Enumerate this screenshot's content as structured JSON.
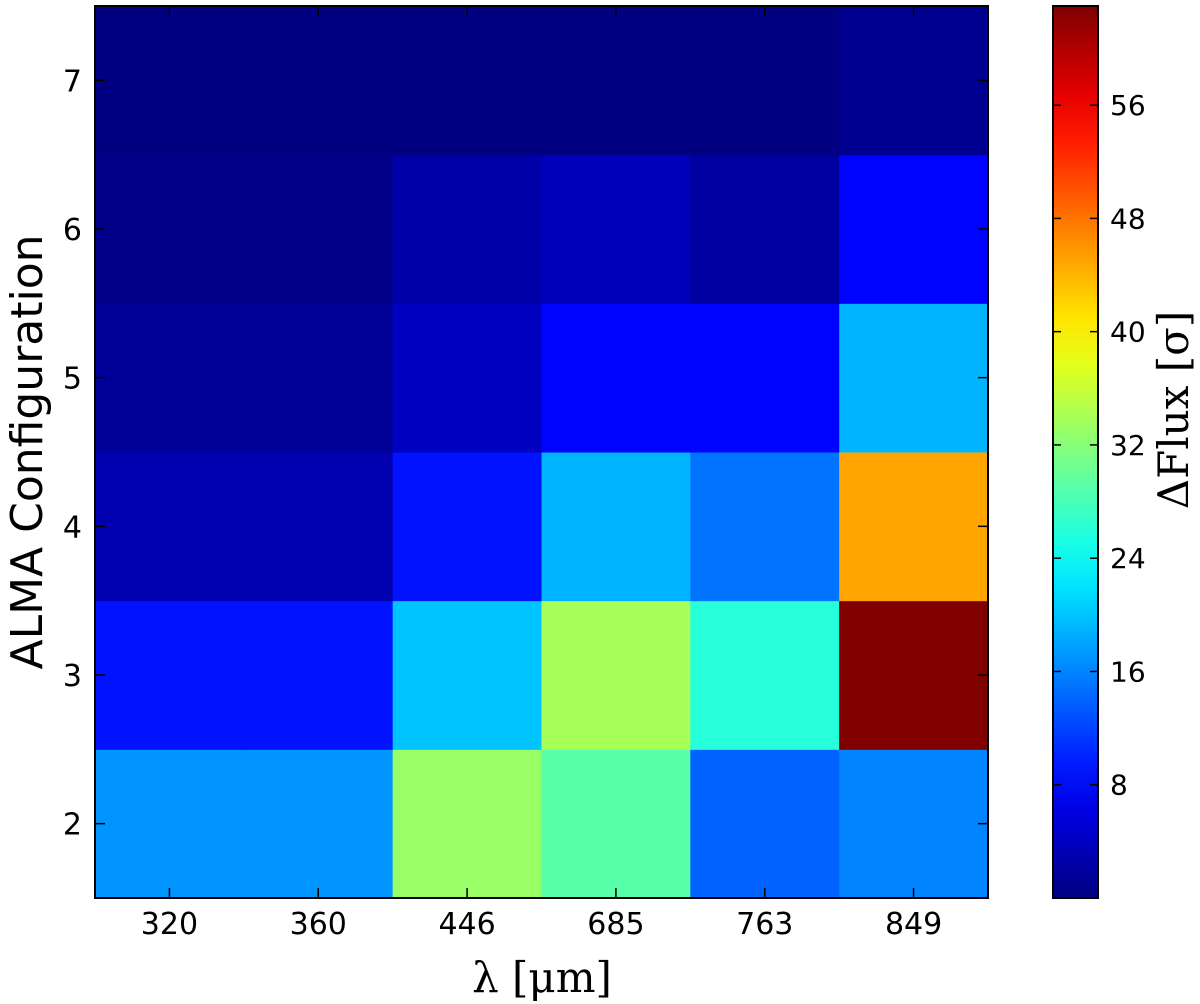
{
  "chart_data": {
    "type": "heatmap",
    "title": "",
    "xlabel": "λ [μm]",
    "ylabel": "ALMA Configuration",
    "x_categories": [
      "320",
      "360",
      "446",
      "685",
      "763",
      "849"
    ],
    "y_categories": [
      "2",
      "3",
      "4",
      "5",
      "6",
      "7"
    ],
    "values": [
      [
        17,
        17,
        33,
        29,
        14,
        16
      ],
      [
        9,
        9,
        20,
        34,
        26,
        63
      ],
      [
        3,
        3,
        9,
        19,
        15,
        45
      ],
      [
        1.5,
        1.5,
        4,
        8,
        8,
        19
      ],
      [
        0.5,
        0.5,
        2.5,
        3.5,
        2,
        8
      ],
      [
        0,
        0,
        0,
        0,
        0,
        1
      ]
    ],
    "colormap": "jet",
    "vmin": 0,
    "vmax": 63,
    "colorbar": {
      "label": "ΔFlux [σ]",
      "ticks": [
        8,
        16,
        24,
        32,
        40,
        48,
        56
      ]
    },
    "grid": false
  }
}
